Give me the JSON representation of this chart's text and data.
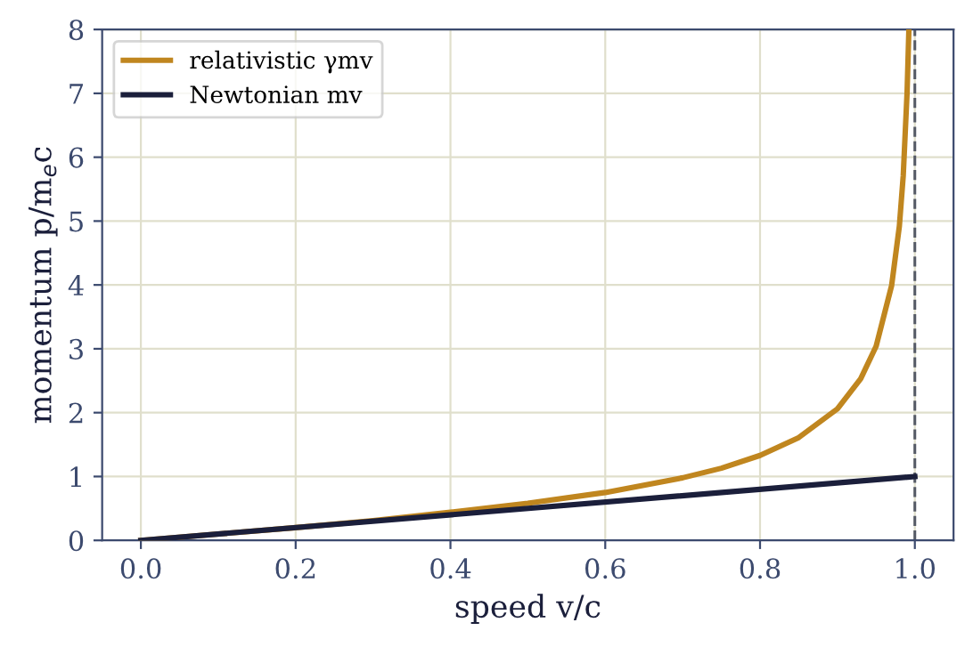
{
  "chart_data": {
    "type": "line",
    "xlabel": "speed v/c",
    "ylabel": "momentum p/m$_{e}$c",
    "xlim": [
      -0.05,
      1.05
    ],
    "ylim": [
      0,
      8
    ],
    "xticks": [
      {
        "value": 0,
        "label": "0.0"
      },
      0.2,
      0.4,
      0.6,
      0.8,
      {
        "value": 1,
        "label": "1.0"
      }
    ],
    "yticks": [
      0,
      1,
      2,
      3,
      4,
      5,
      6,
      7,
      8
    ],
    "grid": true,
    "legend": "top left",
    "marker": "none",
    "line_style": "solid",
    "ref_lines": [
      {
        "axis": "x",
        "value": 1,
        "color": "#555a66",
        "line_style": "dashed"
      }
    ],
    "series": [
      {
        "name": "relativistic γmv",
        "color": "#c0861f",
        "x": [
          0,
          0.1,
          0.2,
          0.3,
          0.4,
          0.5,
          0.6,
          0.7,
          0.75,
          0.8,
          0.85,
          0.9,
          0.93,
          0.95,
          0.97,
          0.98,
          0.985,
          0.99,
          0.9923
        ],
        "values": [
          0,
          0.1,
          0.2,
          0.31,
          0.44,
          0.58,
          0.75,
          0.98,
          1.13,
          1.33,
          1.61,
          2.06,
          2.53,
          3.04,
          3.99,
          4.92,
          5.71,
          7.02,
          8.0
        ]
      },
      {
        "name": "Newtonian mv",
        "color": "#1b1f3b",
        "x": [
          0,
          1
        ],
        "values": [
          0,
          1
        ]
      }
    ]
  }
}
